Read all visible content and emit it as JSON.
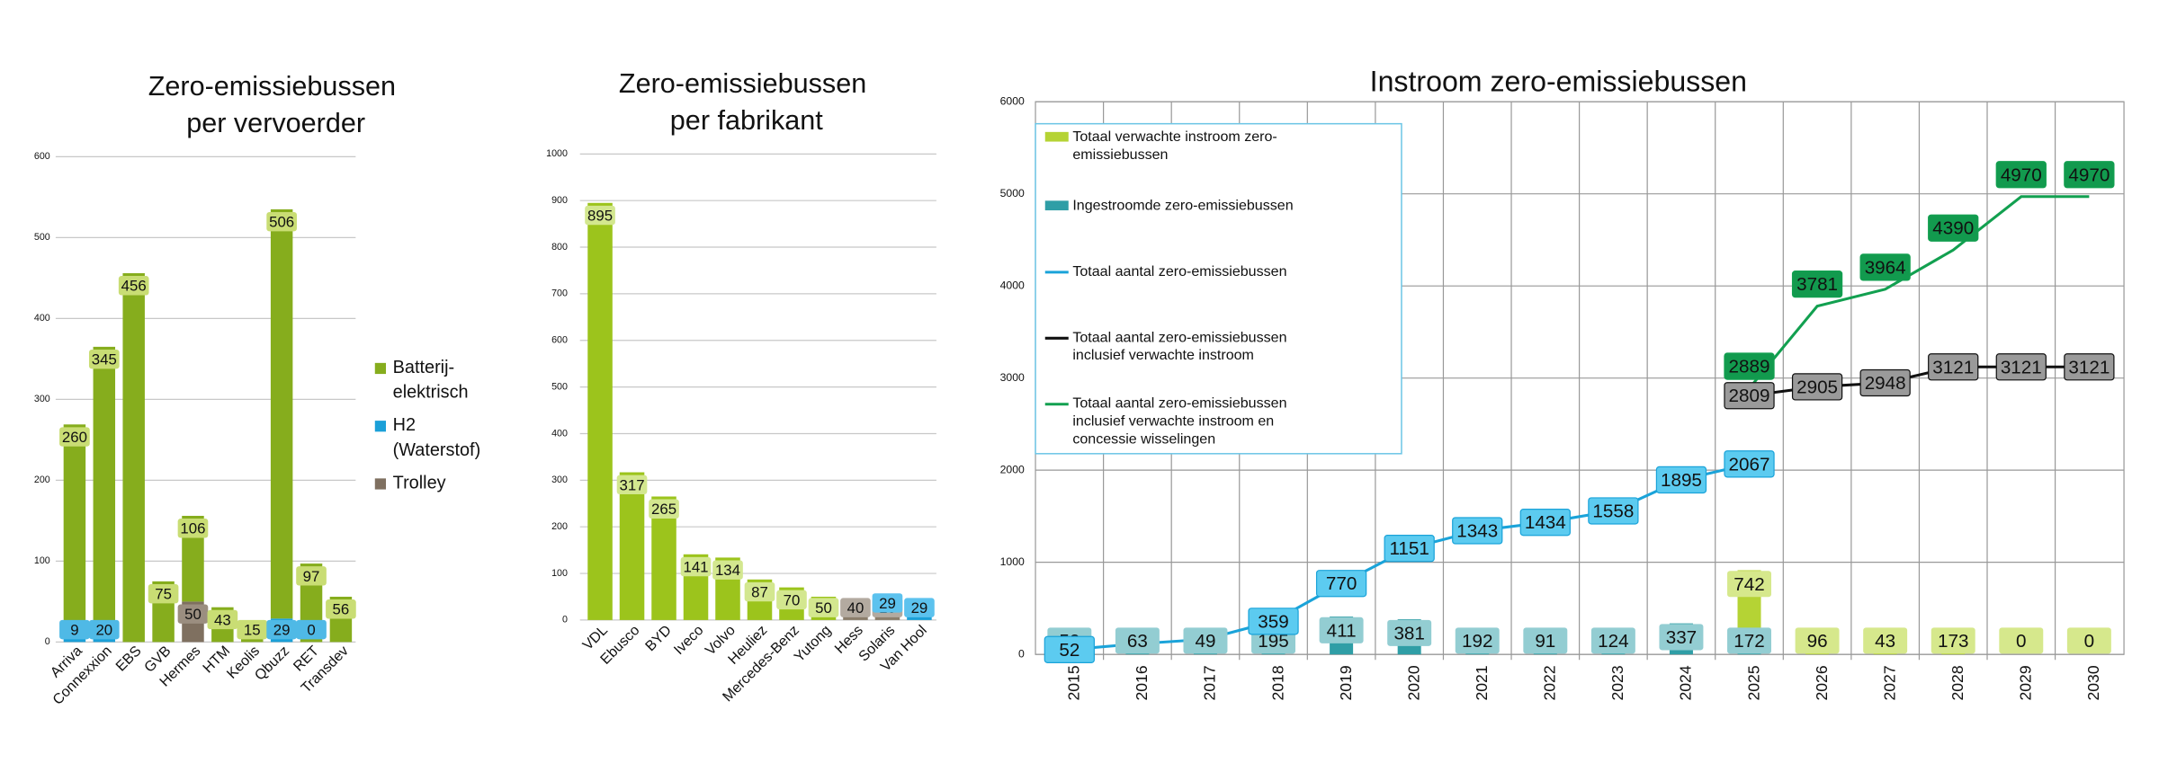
{
  "chart_data": [
    {
      "type": "bar",
      "stacked": true,
      "title": "Zero-emissiebussen per vervoerder",
      "categories": [
        "Arriva",
        "Connexxion",
        "EBS",
        "GVB",
        "Hermes",
        "HTM",
        "Keolis",
        "Qbuzz",
        "RET",
        "Transdev"
      ],
      "series": [
        {
          "name": "Batterij-elektrisch",
          "color": "#86ad1d",
          "label_color": "#c9dd74",
          "values": [
            260,
            345,
            456,
            75,
            106,
            43,
            15,
            506,
            97,
            56
          ]
        },
        {
          "name": "H2 (Waterstof)",
          "color": "#1ba0d8",
          "label_color": "#4fb9e6",
          "values": [
            9,
            20,
            null,
            null,
            null,
            null,
            null,
            29,
            0,
            null
          ]
        },
        {
          "name": "Trolley",
          "color": "#7f7060",
          "label_color": "#9b8e80",
          "values": [
            null,
            null,
            null,
            null,
            50,
            null,
            null,
            null,
            null,
            null
          ]
        }
      ],
      "ylim": [
        0,
        600
      ],
      "yticks": [
        0,
        100,
        200,
        300,
        400,
        500,
        600
      ],
      "grid": true,
      "legend": "right"
    },
    {
      "type": "bar",
      "stacked": true,
      "title": "Zero-emissiebussen per fabrikant",
      "categories": [
        "VDL",
        "Ebusco",
        "BYD",
        "Iveco",
        "Volvo",
        "Heuliez",
        "Mercedes-Benz",
        "Yutong",
        "Hess",
        "Solaris",
        "Van Hool"
      ],
      "series": [
        {
          "color": "#9cc41c",
          "label_color": "#d3e78f",
          "values": [
            895,
            317,
            265,
            141,
            134,
            87,
            70,
            50,
            null,
            null,
            null
          ]
        },
        {
          "color": "#1ba0d8",
          "label_color": "#5cc2ee",
          "values": [
            null,
            null,
            null,
            null,
            null,
            null,
            null,
            null,
            null,
            29,
            29
          ]
        },
        {
          "color": "#8b7d6b",
          "label_color": "#b3aaa0",
          "values": [
            null,
            null,
            null,
            null,
            null,
            null,
            null,
            null,
            40,
            10,
            null
          ]
        }
      ],
      "ylim": [
        0,
        1000
      ],
      "yticks": [
        0,
        100,
        200,
        300,
        400,
        500,
        600,
        700,
        800,
        900,
        1000
      ],
      "grid": true
    },
    {
      "type": "combo",
      "stacked": true,
      "title": "Instroom zero-emissiebussen",
      "categories": [
        "2015",
        "2016",
        "2017",
        "2018",
        "2019",
        "2020",
        "2021",
        "2022",
        "2023",
        "2024",
        "2025",
        "2026",
        "2027",
        "2028",
        "2029",
        "2030"
      ],
      "series": [
        {
          "name": "Totaal verwachte instroom zero-emissiebussen",
          "type": "bar",
          "color": "#b5d334",
          "label_color": "#d6e88c",
          "label_text_color": "#111",
          "values": [
            null,
            null,
            null,
            null,
            null,
            null,
            null,
            null,
            null,
            null,
            742,
            96,
            43,
            173,
            0,
            0
          ]
        },
        {
          "name": "Ingestroomde zero-emissiebussen",
          "type": "bar",
          "color": "#2f9ea6",
          "label_color": "#93cdd2",
          "label_text_color": "#111",
          "values": [
            52,
            63,
            49,
            195,
            411,
            381,
            192,
            91,
            124,
            337,
            172,
            null,
            null,
            null,
            null,
            null
          ]
        },
        {
          "name": "Totaal aantal zero-emissiebussen",
          "type": "line",
          "color": "#1aa3d9",
          "label_color": "#5ccbf0",
          "label_text_color": "#111",
          "values": [
            52,
            115,
            164,
            359,
            770,
            1151,
            1343,
            1434,
            1558,
            1895,
            2067,
            null,
            null,
            null,
            null,
            null
          ],
          "value_labels": [
            52,
            null,
            null,
            359,
            770,
            1151,
            1343,
            1434,
            1558,
            1895,
            2067,
            null,
            null,
            null,
            null,
            null
          ]
        },
        {
          "name": "Totaal aantal zero-emissiebussen inclusief verwachte instroom",
          "type": "line",
          "color": "#111111",
          "label_color": "#9a9a9a",
          "label_text_color": "#fff",
          "values": [
            null,
            null,
            null,
            null,
            null,
            null,
            null,
            null,
            null,
            null,
            2809,
            2905,
            2948,
            3121,
            3121,
            3121
          ]
        },
        {
          "name": "Totaal aantal zero-emissiebussen inclusief verwachte instroom en  concessie wisselingen",
          "type": "line",
          "color": "#12a050",
          "label_color": "#129a4e",
          "label_text_color": "#fff",
          "values": [
            null,
            null,
            null,
            null,
            null,
            null,
            null,
            null,
            null,
            null,
            2889,
            3781,
            3964,
            4390,
            4970,
            4970
          ]
        }
      ],
      "ylim": [
        0,
        6000
      ],
      "yticks": [
        0,
        1000,
        2000,
        3000,
        4000,
        5000,
        6000
      ],
      "grid": true,
      "legend": "upper left"
    }
  ]
}
